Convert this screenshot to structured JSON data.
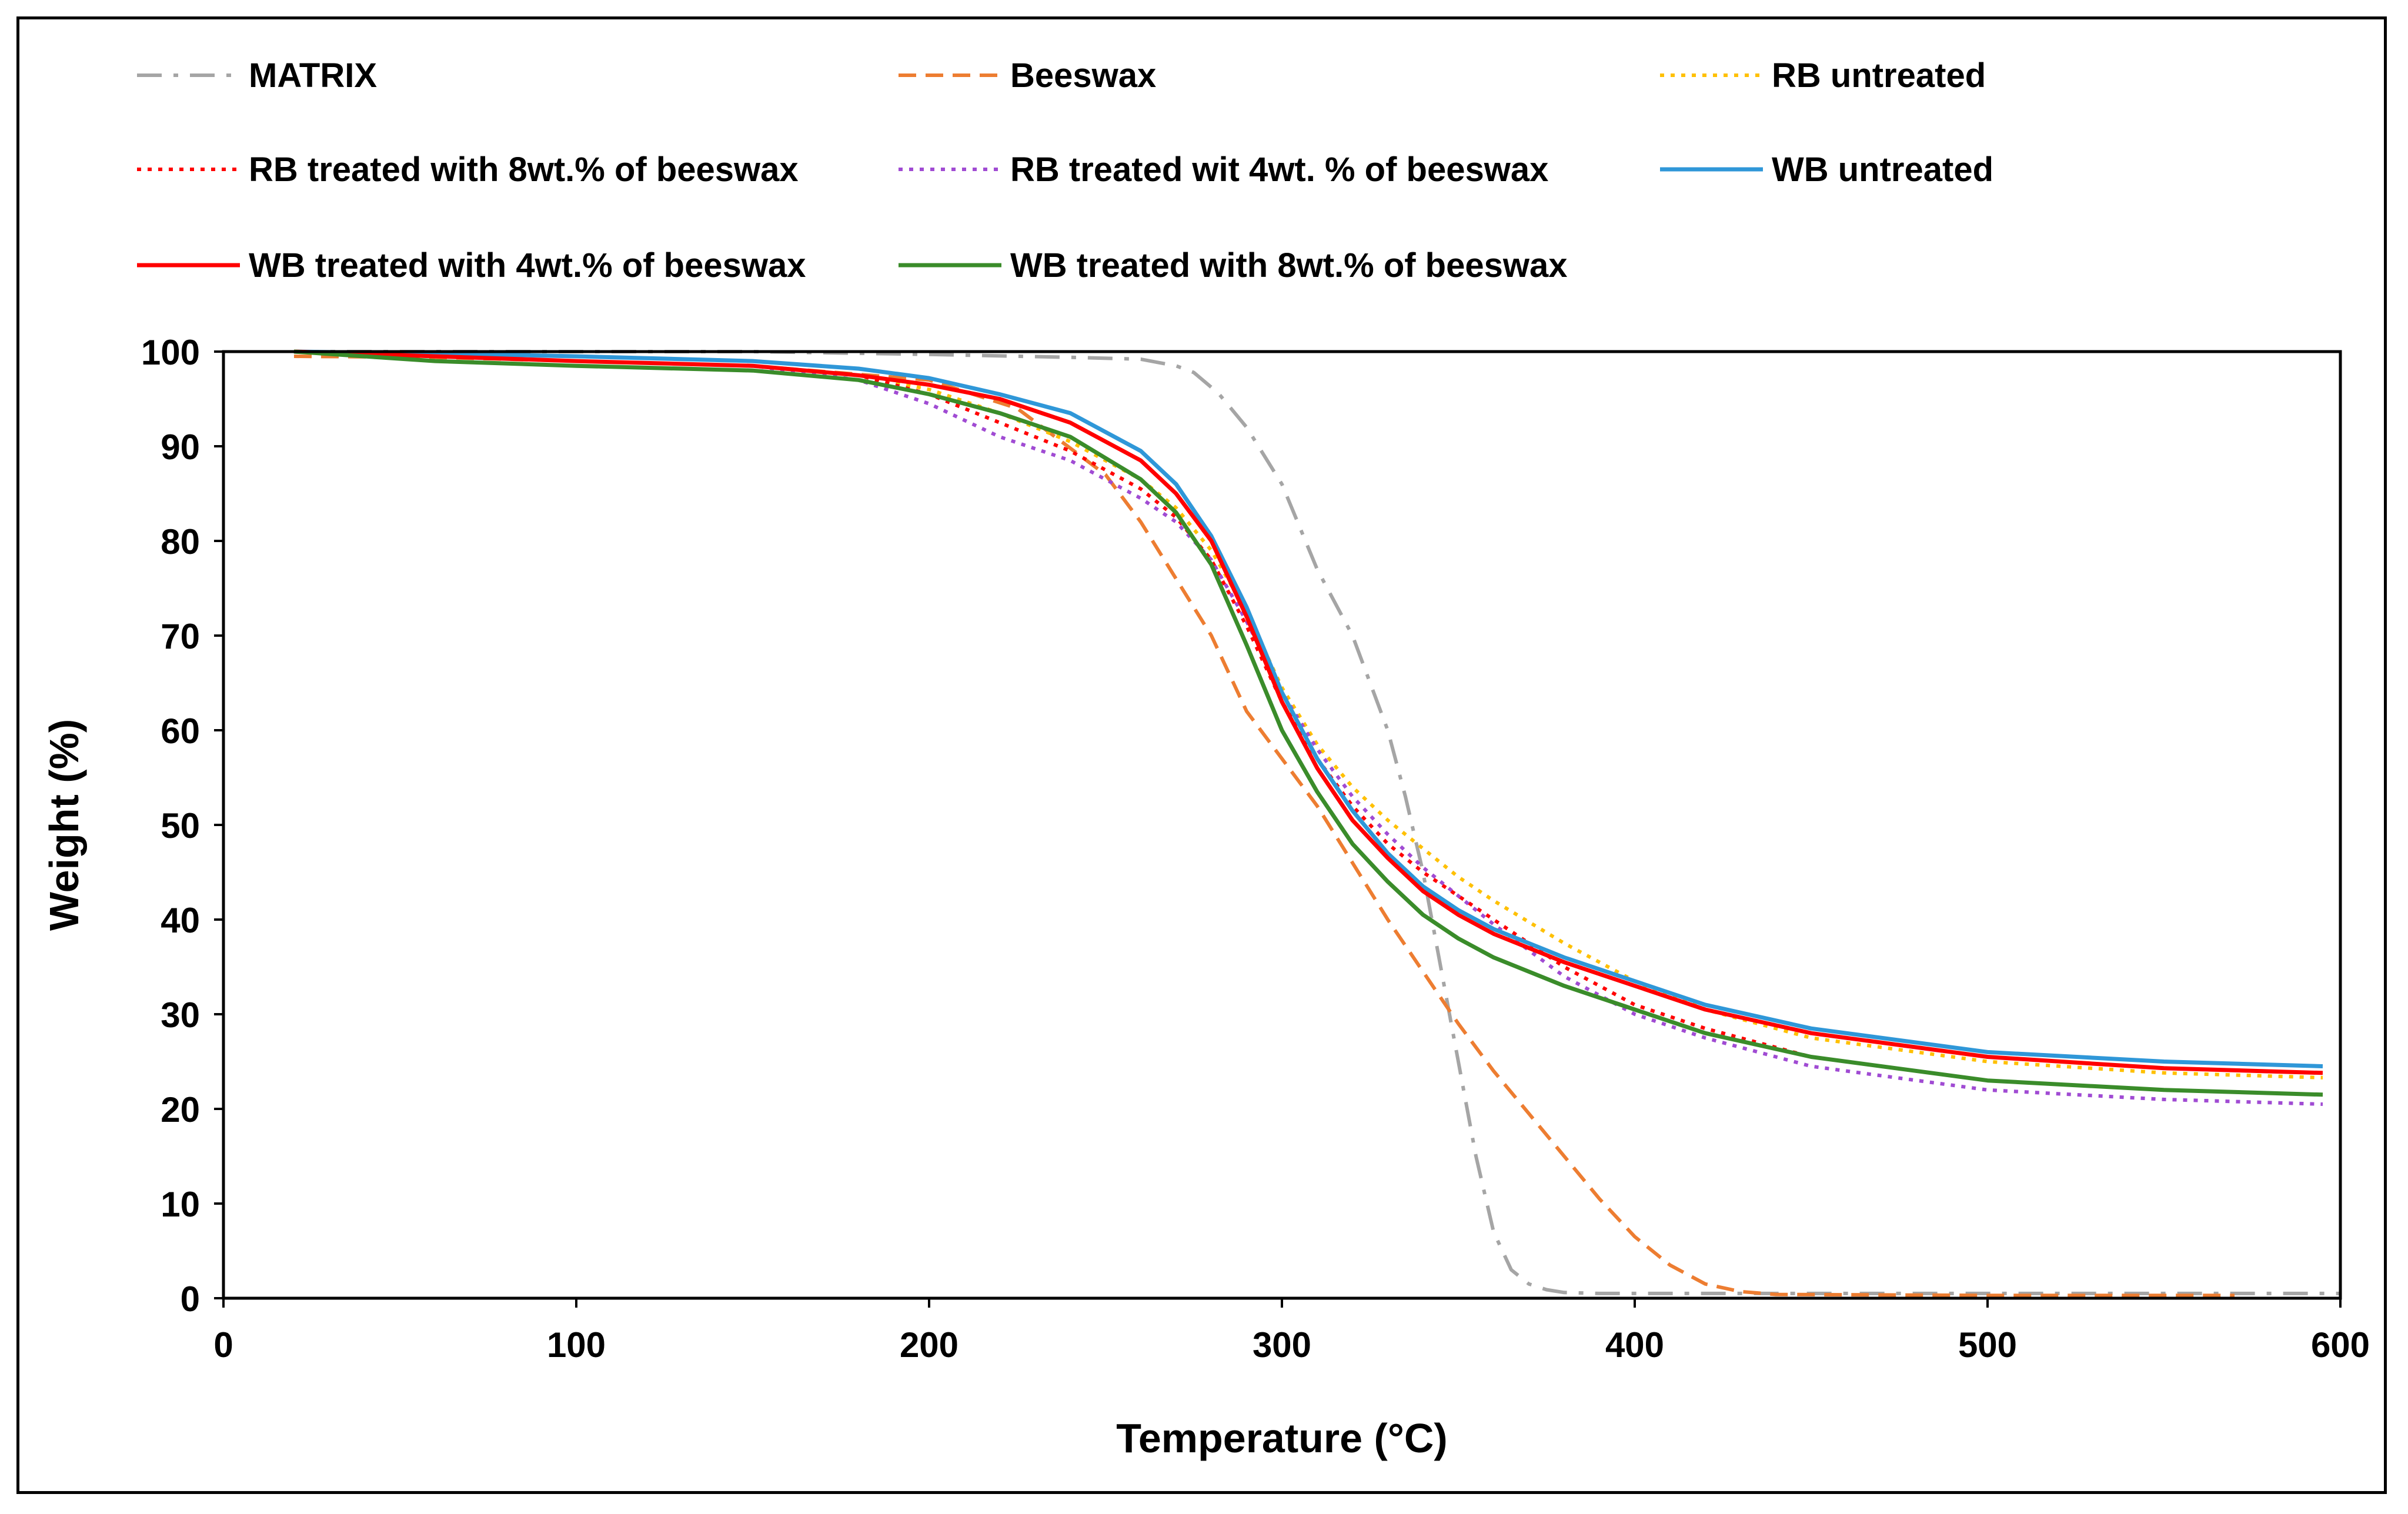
{
  "chart_data": {
    "type": "line",
    "title": "",
    "xlabel": "Temperature (°C)",
    "ylabel": "Weight (%)",
    "xlim": [
      0,
      600
    ],
    "ylim": [
      0,
      100
    ],
    "xticks": [
      "0",
      "100",
      "200",
      "300",
      "400",
      "500",
      "600"
    ],
    "yticks": [
      "0",
      "10",
      "20",
      "30",
      "40",
      "50",
      "60",
      "70",
      "80",
      "90",
      "100"
    ],
    "grid": false,
    "legend_position": "top",
    "series": [
      {
        "name": "MATRIX",
        "color": "#A5A5A5",
        "dash": "dashdot",
        "x": [
          20,
          60,
          100,
          150,
          200,
          240,
          260,
          270,
          275,
          282,
          290,
          300,
          310,
          320,
          330,
          335,
          340,
          345,
          350,
          355,
          360,
          365,
          370,
          375,
          380,
          390,
          400,
          500,
          600
        ],
        "y": [
          100,
          100,
          100,
          100,
          99.7,
          99.4,
          99.2,
          98.5,
          97.8,
          95.6,
          92,
          86,
          77,
          70,
          60,
          53,
          45,
          35,
          25,
          15,
          7,
          3,
          1.5,
          0.9,
          0.6,
          0.5,
          0.5,
          0.5,
          0.5
        ]
      },
      {
        "name": "Beeswax",
        "color": "#ED7D31",
        "dash": "dashed",
        "x": [
          20,
          60,
          100,
          150,
          200,
          225,
          250,
          260,
          270,
          280,
          290,
          300,
          310,
          320,
          330,
          340,
          350,
          360,
          370,
          380,
          390,
          400,
          410,
          420,
          430,
          440,
          500,
          570
        ],
        "y": [
          99.5,
          99.4,
          99,
          98.5,
          97,
          94,
          87,
          82,
          76,
          70,
          62,
          57,
          52,
          46,
          40,
          34.5,
          29,
          24,
          19.5,
          15,
          10.5,
          6.5,
          3.5,
          1.5,
          0.7,
          0.4,
          0.3,
          0.3
        ]
      },
      {
        "name": "RB untreated",
        "color": "#FFC000",
        "dash": "dotted",
        "x": [
          20,
          60,
          100,
          150,
          180,
          200,
          220,
          240,
          260,
          270,
          280,
          290,
          300,
          310,
          320,
          330,
          340,
          350,
          360,
          380,
          400,
          420,
          450,
          500,
          550,
          595
        ],
        "y": [
          100,
          99.5,
          99,
          98.5,
          97.5,
          96,
          93.5,
          90.5,
          86.5,
          83.5,
          79,
          72.5,
          64.5,
          58.5,
          54,
          50.5,
          47.5,
          44.5,
          42,
          37.5,
          33.5,
          30.5,
          27.5,
          25,
          23.8,
          23.3
        ]
      },
      {
        "name": "RB treated with 8wt.% of beeswax",
        "color": "#FF0000",
        "dash": "dotted",
        "x": [
          20,
          60,
          100,
          150,
          180,
          200,
          220,
          240,
          260,
          270,
          280,
          290,
          300,
          310,
          320,
          330,
          340,
          350,
          360,
          380,
          400,
          420,
          450,
          500,
          550,
          595
        ],
        "y": [
          100,
          99.5,
          99,
          98.5,
          97.5,
          95.5,
          92.5,
          89.5,
          85.5,
          82.5,
          78,
          71,
          63,
          57,
          52,
          48,
          45,
          42.5,
          40,
          35,
          31,
          28.5,
          25.5,
          23,
          22,
          21.5
        ]
      },
      {
        "name": "RB treated wit 4wt. % of beeswax",
        "color": "#A04BD3",
        "dash": "dotted",
        "x": [
          20,
          60,
          100,
          150,
          180,
          200,
          220,
          240,
          260,
          270,
          280,
          290,
          300,
          310,
          320,
          330,
          340,
          350,
          360,
          380,
          400,
          420,
          450,
          500,
          550,
          595
        ],
        "y": [
          100,
          99.5,
          99,
          98.5,
          97,
          94.5,
          91,
          88.5,
          84.5,
          82,
          78,
          71.5,
          64,
          58,
          53,
          49,
          45.5,
          42.5,
          39.5,
          34,
          30,
          27.5,
          24.5,
          22,
          21,
          20.5
        ]
      },
      {
        "name": "WB untreated",
        "color": "#2F97D8",
        "dash": "solid",
        "x": [
          20,
          60,
          100,
          150,
          180,
          200,
          220,
          240,
          260,
          270,
          280,
          290,
          300,
          310,
          320,
          330,
          340,
          350,
          360,
          380,
          400,
          420,
          450,
          500,
          550,
          595
        ],
        "y": [
          100,
          99.8,
          99.5,
          99,
          98.2,
          97.2,
          95.5,
          93.5,
          89.5,
          86,
          80.5,
          73,
          64,
          57,
          51.5,
          47,
          43.5,
          41,
          39,
          36,
          33.5,
          31,
          28.5,
          26,
          25,
          24.5
        ]
      },
      {
        "name": "WB treated with 4wt.% of beeswax",
        "color": "#FF0000",
        "dash": "solid",
        "x": [
          20,
          60,
          100,
          150,
          180,
          200,
          220,
          240,
          260,
          270,
          280,
          290,
          300,
          310,
          320,
          330,
          340,
          350,
          360,
          380,
          400,
          420,
          450,
          500,
          550,
          595
        ],
        "y": [
          100,
          99.5,
          99,
          98.5,
          97.5,
          96.5,
          95,
          92.5,
          88.5,
          85,
          80,
          72,
          63,
          56,
          50.5,
          46.5,
          43,
          40.5,
          38.5,
          35.5,
          33,
          30.5,
          28,
          25.5,
          24.3,
          23.8
        ]
      },
      {
        "name": "WB treated with 8wt.% of beeswax",
        "color": "#3A8C2A",
        "dash": "solid",
        "x": [
          20,
          60,
          100,
          150,
          180,
          200,
          220,
          240,
          260,
          270,
          280,
          290,
          300,
          310,
          320,
          330,
          340,
          350,
          360,
          380,
          400,
          420,
          450,
          500,
          550,
          595
        ],
        "y": [
          100,
          99,
          98.5,
          98,
          97,
          95.5,
          93.5,
          91,
          86.5,
          83,
          77.5,
          69,
          60,
          53.5,
          48,
          44,
          40.5,
          38,
          36,
          33,
          30.5,
          28,
          25.5,
          23,
          22,
          21.5
        ]
      }
    ]
  }
}
